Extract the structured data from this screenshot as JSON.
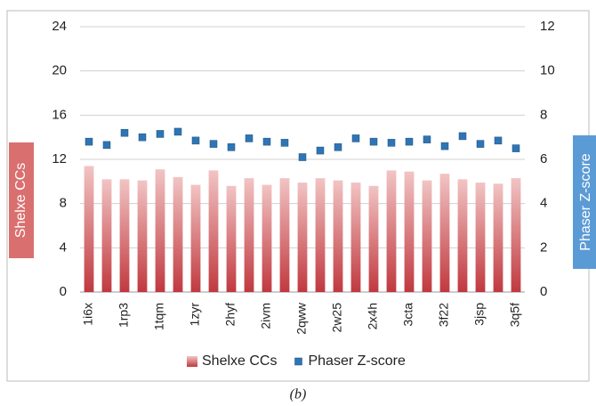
{
  "chart_data": {
    "type": "bar",
    "caption": "(b)",
    "categories": [
      "1i6x",
      null,
      "1rp3",
      null,
      "1tqm",
      null,
      "1zyr",
      null,
      "2hyf",
      null,
      "2ivm",
      null,
      "2qww",
      null,
      "2w25",
      null,
      "2x4h",
      null,
      "3cta",
      null,
      "3f22",
      null,
      "3jsp",
      null,
      "3q5f"
    ],
    "series": [
      {
        "name": "Shelxe CCs",
        "type": "bar",
        "color": "#c0393f",
        "axis": "y",
        "values": [
          11.4,
          10.2,
          10.2,
          10.1,
          11.1,
          10.4,
          9.7,
          11.0,
          9.6,
          10.3,
          9.7,
          10.3,
          9.9,
          10.3,
          10.1,
          9.9,
          9.6,
          11.0,
          10.9,
          10.1,
          10.7,
          10.2,
          9.9,
          9.8,
          10.3
        ]
      },
      {
        "name": "Phaser Z-score",
        "type": "scatter",
        "color": "#2e75b6",
        "axis": "y2",
        "values": [
          6.8,
          6.65,
          7.2,
          7.0,
          7.15,
          7.25,
          6.85,
          6.7,
          6.55,
          6.95,
          6.8,
          6.75,
          6.1,
          6.4,
          6.55,
          6.95,
          6.8,
          6.75,
          6.8,
          6.9,
          6.6,
          7.05,
          6.7,
          6.85,
          6.5
        ]
      }
    ],
    "ylabel": "Shelxe CCs",
    "y2label": "Phaser Z-score",
    "ylim": [
      0,
      24
    ],
    "yticks": [
      0,
      4,
      8,
      12,
      16,
      20,
      24
    ],
    "y2lim": [
      0,
      12
    ],
    "y2ticks": [
      0,
      2,
      4,
      6,
      8,
      10,
      12
    ],
    "grid": true,
    "legend": "bottom"
  }
}
